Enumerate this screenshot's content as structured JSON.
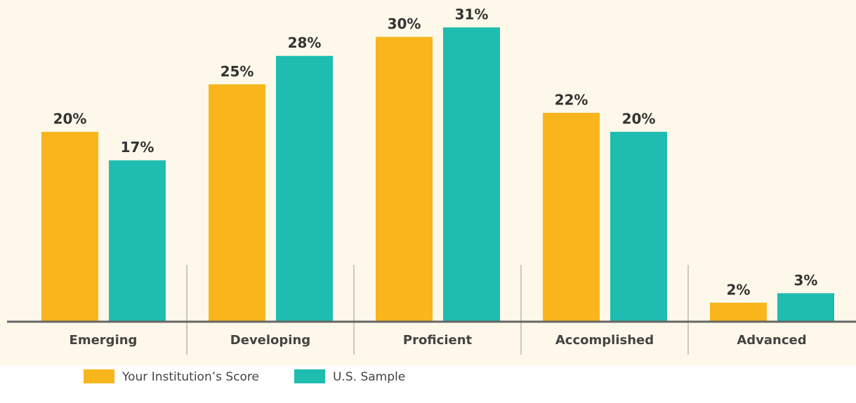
{
  "chart_data": {
    "type": "bar",
    "categories": [
      "Emerging",
      "Developing",
      "Proficient",
      "Accomplished",
      "Advanced"
    ],
    "series": [
      {
        "name": "Your Institution’s Score",
        "color": "#f8b61c",
        "values": [
          20,
          25,
          30,
          22,
          2
        ],
        "value_labels": [
          "20%",
          "25%",
          "30%",
          "22%",
          "2%"
        ]
      },
      {
        "name": "U.S. Sample",
        "color": "#1fbcb0",
        "values": [
          17,
          28,
          31,
          20,
          3
        ],
        "value_labels": [
          "17%",
          "28%",
          "31%",
          "20%",
          "3%"
        ]
      }
    ],
    "ylim": [
      0,
      33
    ]
  }
}
